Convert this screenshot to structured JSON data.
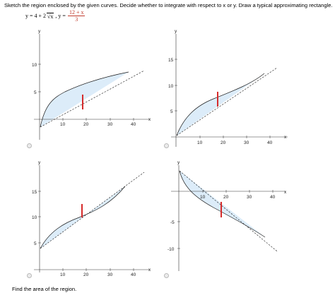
{
  "instruction": "Sketch the region enclosed by the given curves. Decide whether to integrate with respect to x or y. Draw a typical approximating rectangle.",
  "equation": {
    "lhs": "y = 4 + 2",
    "sqrt_arg": "x",
    "mid": ", y =",
    "fraction_numerator": "12 + x",
    "fraction_denominator": "3"
  },
  "options": [
    {
      "y_axis_label": "y",
      "x_axis_label": "x",
      "x_ticks": [
        "10",
        "20",
        "30",
        "40"
      ],
      "y_ticks": [
        "5",
        "10"
      ]
    },
    {
      "y_axis_label": "y",
      "x_axis_label": "x",
      "x_ticks": [
        "10",
        "20",
        "30",
        "40"
      ],
      "y_ticks": [
        "5",
        "10",
        "15"
      ]
    },
    {
      "y_axis_label": "y",
      "x_axis_label": "x",
      "x_ticks": [
        "10",
        "20",
        "30",
        "40"
      ],
      "y_ticks": [
        "5",
        "10",
        "15"
      ]
    },
    {
      "y_axis_label": "y",
      "x_axis_label": "x",
      "x_ticks": [
        "10",
        "20",
        "30",
        "40"
      ],
      "y_ticks": [
        "-5",
        "-10"
      ]
    }
  ],
  "colors": {
    "region_fill": "#dcecf9",
    "rectangle": "#d62b2b",
    "curve": "#1a1a1a"
  },
  "footer_question": "Find the area of the region."
}
